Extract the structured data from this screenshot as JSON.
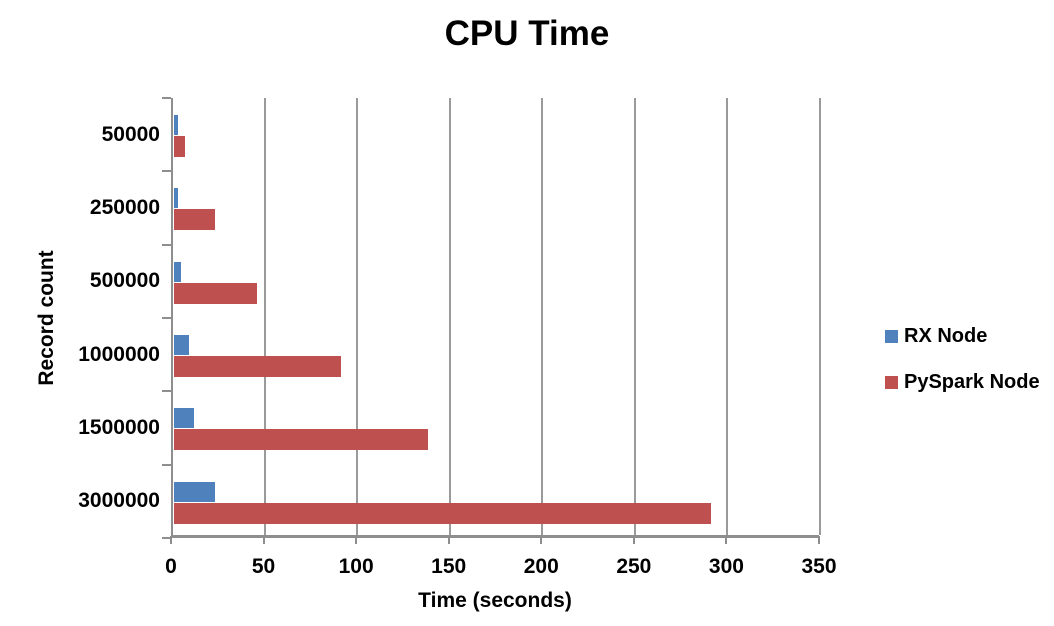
{
  "chart_data": {
    "type": "bar",
    "orientation": "horizontal",
    "title": "CPU Time",
    "xlabel": "Time (seconds)",
    "ylabel": "Record count",
    "xlim": [
      0,
      350
    ],
    "xticks": [
      0,
      50,
      100,
      150,
      200,
      250,
      300,
      350
    ],
    "categories": [
      "50000",
      "250000",
      "500000",
      "1000000",
      "1500000",
      "3000000"
    ],
    "series": [
      {
        "name": "RX Node",
        "color": "#4F81BD",
        "values": [
          2,
          2,
          4,
          8,
          11,
          22
        ]
      },
      {
        "name": "PySpark Node",
        "color": "#BE514F",
        "values": [
          6,
          22,
          45,
          90,
          137,
          290
        ]
      }
    ],
    "legend_position": "right",
    "grid": true,
    "colors": {
      "axis": "#8E8E8E",
      "grid": "#9A9A9A",
      "text": "#000000",
      "background": "#FFFFFF"
    }
  }
}
